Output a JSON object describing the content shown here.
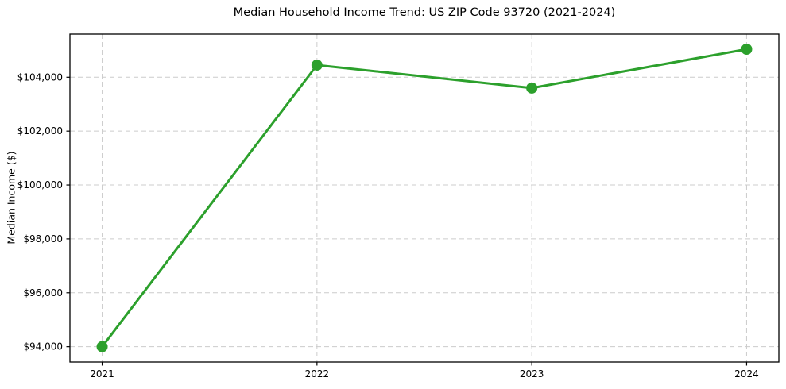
{
  "chart_data": {
    "type": "line",
    "title": "Median Household Income Trend: US ZIP Code 93720 (2021-2024)",
    "xlabel": "",
    "ylabel": "Median Income ($)",
    "x": [
      2021,
      2022,
      2023,
      2024
    ],
    "series": [
      {
        "name": "Median Household Income",
        "values": [
          94000,
          104450,
          103600,
          105040
        ],
        "line_color": "#2ca02c",
        "marker": "circle",
        "marker_color": "#2ca02c",
        "line_width": 3,
        "marker_radius": 7
      }
    ],
    "xticks": [
      2021,
      2022,
      2023,
      2024
    ],
    "xtick_labels": [
      "2021",
      "2022",
      "2023",
      "2024"
    ],
    "yticks": [
      94000,
      96000,
      98000,
      100000,
      102000,
      104000
    ],
    "ytick_labels": [
      "$94,000",
      "$96,000",
      "$98,000",
      "$100,000",
      "$102,000",
      "$104,000"
    ],
    "xlim": [
      2020.85,
      2024.15
    ],
    "ylim": [
      93430,
      105600
    ],
    "grid": true,
    "grid_style": "dashed",
    "grid_color": "#cccccc",
    "spine_color": "#000000",
    "background_color": "#ffffff",
    "legend_position": "none"
  }
}
